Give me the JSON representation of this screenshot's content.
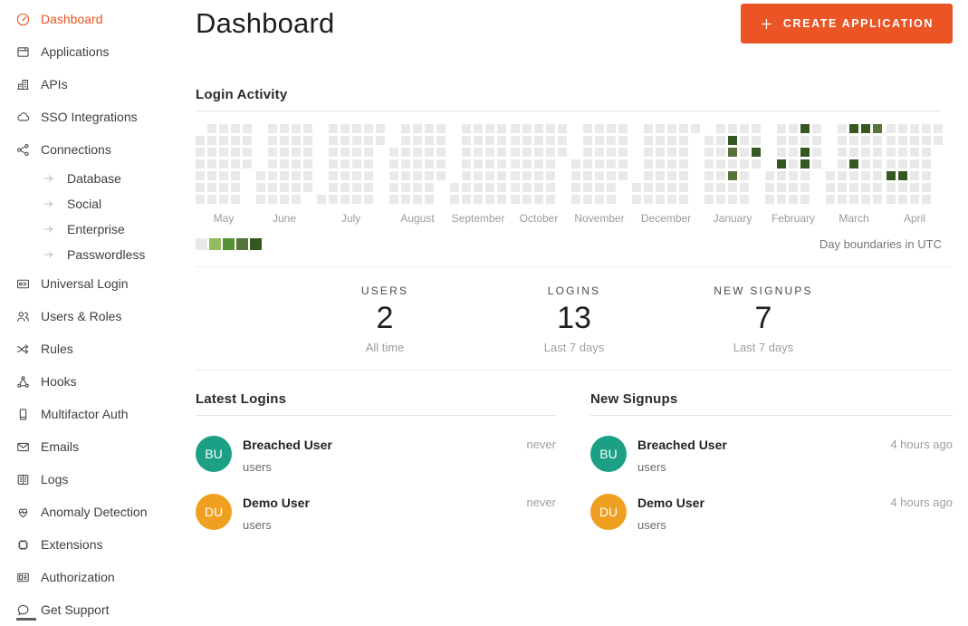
{
  "accent_color": "#eb5424",
  "sidebar": {
    "items": [
      {
        "label": "Dashboard",
        "icon": "gauge-icon",
        "active": true
      },
      {
        "label": "Applications",
        "icon": "applications-icon"
      },
      {
        "label": "APIs",
        "icon": "apis-icon"
      },
      {
        "label": "SSO Integrations",
        "icon": "cloud-icon"
      },
      {
        "label": "Connections",
        "icon": "share-icon"
      },
      {
        "label": "Database",
        "icon": "arrow-right-icon",
        "sub": true
      },
      {
        "label": "Social",
        "icon": "arrow-right-icon",
        "sub": true
      },
      {
        "label": "Enterprise",
        "icon": "arrow-right-icon",
        "sub": true
      },
      {
        "label": "Passwordless",
        "icon": "arrow-right-icon",
        "sub": true
      },
      {
        "label": "Universal Login",
        "icon": "browser-login-icon"
      },
      {
        "label": "Users & Roles",
        "icon": "users-icon"
      },
      {
        "label": "Rules",
        "icon": "shuffle-icon"
      },
      {
        "label": "Hooks",
        "icon": "nodes-icon"
      },
      {
        "label": "Multifactor Auth",
        "icon": "phone-icon"
      },
      {
        "label": "Emails",
        "icon": "mail-icon"
      },
      {
        "label": "Logs",
        "icon": "book-icon"
      },
      {
        "label": "Anomaly Detection",
        "icon": "heart-pulse-icon"
      },
      {
        "label": "Extensions",
        "icon": "chip-icon"
      },
      {
        "label": "Authorization",
        "icon": "id-card-icon"
      },
      {
        "label": "Get Support",
        "icon": "chat-bubble-icon"
      }
    ]
  },
  "header": {
    "title": "Dashboard",
    "create_button_label": "CREATE APPLICATION"
  },
  "login_activity": {
    "title": "Login Activity",
    "utc_note": "Day boundaries in UTC",
    "cell_color": "#e9e9e9",
    "legend_colors": [
      "#e9e9e9",
      "#94bc5e",
      "#569138",
      "#56733a",
      "#345820"
    ],
    "greens_format": "[week_col, day_row, legend_level]",
    "months": [
      {
        "label": "May",
        "cols": [
          [
            1,
            6
          ],
          [
            0,
            6
          ],
          [
            0,
            6
          ],
          [
            0,
            6
          ],
          [
            0,
            3
          ]
        ],
        "greens": []
      },
      {
        "label": "June",
        "cols": [
          [
            4,
            6
          ],
          [
            0,
            6
          ],
          [
            0,
            6
          ],
          [
            0,
            6
          ],
          [
            0,
            5
          ]
        ],
        "greens": []
      },
      {
        "label": "July",
        "cols": [
          [
            6,
            6
          ],
          [
            0,
            6
          ],
          [
            0,
            6
          ],
          [
            0,
            6
          ],
          [
            0,
            6
          ],
          [
            0,
            1
          ]
        ],
        "greens": []
      },
      {
        "label": "August",
        "cols": [
          [
            2,
            6
          ],
          [
            0,
            6
          ],
          [
            0,
            6
          ],
          [
            0,
            6
          ],
          [
            0,
            4
          ]
        ],
        "greens": []
      },
      {
        "label": "September",
        "cols": [
          [
            5,
            6
          ],
          [
            0,
            6
          ],
          [
            0,
            6
          ],
          [
            0,
            6
          ],
          [
            0,
            6
          ]
        ],
        "greens": []
      },
      {
        "label": "October",
        "cols": [
          [
            0,
            6
          ],
          [
            0,
            6
          ],
          [
            0,
            6
          ],
          [
            0,
            6
          ],
          [
            0,
            2
          ]
        ],
        "greens": []
      },
      {
        "label": "November",
        "cols": [
          [
            3,
            6
          ],
          [
            0,
            6
          ],
          [
            0,
            6
          ],
          [
            0,
            6
          ],
          [
            0,
            4
          ]
        ],
        "greens": []
      },
      {
        "label": "December",
        "cols": [
          [
            5,
            6
          ],
          [
            0,
            6
          ],
          [
            0,
            6
          ],
          [
            0,
            6
          ],
          [
            0,
            6
          ],
          [
            0,
            0
          ]
        ],
        "greens": []
      },
      {
        "label": "January",
        "cols": [
          [
            1,
            6
          ],
          [
            0,
            6
          ],
          [
            0,
            6
          ],
          [
            0,
            6
          ],
          [
            0,
            3
          ]
        ],
        "greens": [
          [
            2,
            1,
            4
          ],
          [
            2,
            2,
            3
          ],
          [
            4,
            2,
            4
          ],
          [
            2,
            4,
            3
          ]
        ]
      },
      {
        "label": "February",
        "cols": [
          [
            4,
            6
          ],
          [
            0,
            6
          ],
          [
            0,
            6
          ],
          [
            0,
            6
          ],
          [
            0,
            3
          ]
        ],
        "greens": [
          [
            3,
            0,
            4
          ],
          [
            3,
            2,
            4
          ],
          [
            1,
            3,
            4
          ],
          [
            3,
            3,
            4
          ]
        ]
      },
      {
        "label": "March",
        "cols": [
          [
            4,
            6
          ],
          [
            0,
            6
          ],
          [
            0,
            6
          ],
          [
            0,
            6
          ],
          [
            0,
            6
          ]
        ],
        "greens": [
          [
            2,
            0,
            4
          ],
          [
            3,
            0,
            4
          ],
          [
            4,
            0,
            3
          ],
          [
            2,
            3,
            4
          ]
        ]
      },
      {
        "label": "April",
        "cols": [
          [
            0,
            6
          ],
          [
            0,
            6
          ],
          [
            0,
            6
          ],
          [
            0,
            6
          ],
          [
            0,
            1
          ]
        ],
        "greens": [
          [
            0,
            4,
            4
          ],
          [
            1,
            4,
            4
          ]
        ]
      }
    ]
  },
  "stats": [
    {
      "label": "USERS",
      "value": "2",
      "caption": "All time"
    },
    {
      "label": "LOGINS",
      "value": "13",
      "caption": "Last 7 days"
    },
    {
      "label": "NEW SIGNUPS",
      "value": "7",
      "caption": "Last 7 days"
    }
  ],
  "panels": [
    {
      "title": "Latest Logins",
      "rows": [
        {
          "initials": "BU",
          "name": "Breached User",
          "connection": "users",
          "time": "never",
          "avatar_color": "#1ba085"
        },
        {
          "initials": "DU",
          "name": "Demo User",
          "connection": "users",
          "time": "never",
          "avatar_color": "#efa020"
        }
      ]
    },
    {
      "title": "New Signups",
      "rows": [
        {
          "initials": "BU",
          "name": "Breached User",
          "connection": "users",
          "time": "4 hours ago",
          "avatar_color": "#1ba085"
        },
        {
          "initials": "DU",
          "name": "Demo User",
          "connection": "users",
          "time": "4 hours ago",
          "avatar_color": "#efa020"
        }
      ]
    }
  ]
}
